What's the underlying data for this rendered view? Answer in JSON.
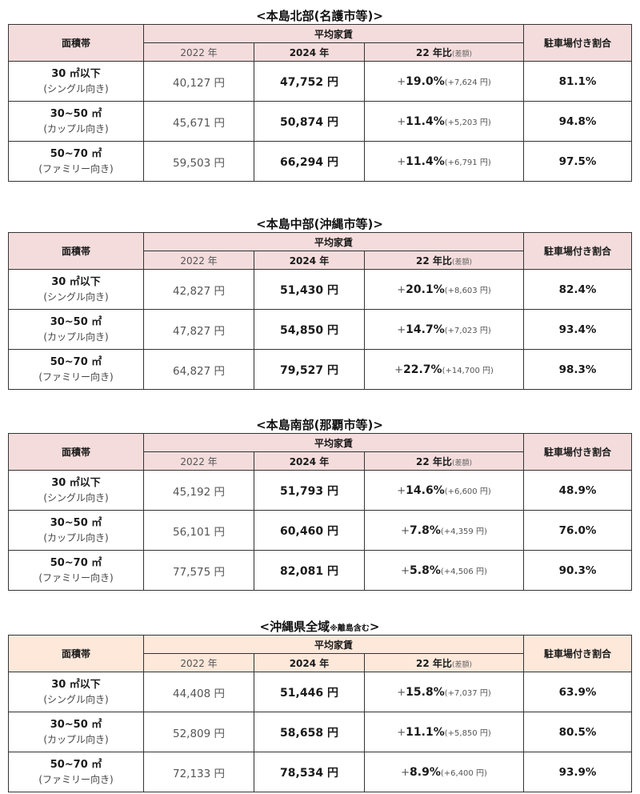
{
  "headers": {
    "area_band": "面積帯",
    "avg_rent": "平均家賃",
    "year_2022": "2022 年",
    "year_2024": "2024 年",
    "ratio_main": "22 年比",
    "ratio_note": "(差額)",
    "parking": "駐車場付き割合"
  },
  "row_labels": [
    {
      "main": "30 ㎡以下",
      "sub": "(シングル向き)"
    },
    {
      "main": "30~50 ㎡",
      "sub": "(カップル向き)"
    },
    {
      "main": "50~70 ㎡",
      "sub": "(ファミリー向き)"
    }
  ],
  "tables": [
    {
      "title": "<本島北部(名護市等)>",
      "title_note": "",
      "header_color": "#f4dcdc",
      "rows": [
        {
          "y2022": "40,127 円",
          "y2024": "47,752 円",
          "plus": "+",
          "pct": "19.0%",
          "diff": "(+7,624 円)",
          "parking": "81.1%"
        },
        {
          "y2022": "45,671 円",
          "y2024": "50,874 円",
          "plus": "+",
          "pct": "11.4%",
          "diff": "(+5,203 円)",
          "parking": "94.8%"
        },
        {
          "y2022": "59,503 円",
          "y2024": "66,294 円",
          "plus": "+",
          "pct": "11.4%",
          "diff": "(+6,791 円)",
          "parking": "97.5%"
        }
      ]
    },
    {
      "title": "<本島中部(沖縄市等)>",
      "title_note": "",
      "header_color": "#f4dcdc",
      "rows": [
        {
          "y2022": "42,827 円",
          "y2024": "51,430 円",
          "plus": "+",
          "pct": "20.1%",
          "diff": "(+8,603 円)",
          "parking": "82.4%"
        },
        {
          "y2022": "47,827 円",
          "y2024": "54,850 円",
          "plus": "+",
          "pct": "14.7%",
          "diff": "(+7,023 円)",
          "parking": "93.4%"
        },
        {
          "y2022": "64,827 円",
          "y2024": "79,527 円",
          "plus": "+",
          "pct": "22.7%",
          "diff": "(+14,700 円)",
          "parking": "98.3%"
        }
      ]
    },
    {
      "title": "<本島南部(那覇市等)>",
      "title_note": "",
      "header_color": "#f4dcdc",
      "rows": [
        {
          "y2022": "45,192 円",
          "y2024": "51,793 円",
          "plus": "+",
          "pct": "14.6%",
          "diff": "(+6,600 円)",
          "parking": "48.9%"
        },
        {
          "y2022": "56,101 円",
          "y2024": "60,460 円",
          "plus": "+",
          "pct": "7.8%",
          "diff": "(+4,359 円)",
          "parking": "76.0%"
        },
        {
          "y2022": "77,575 円",
          "y2024": "82,081 円",
          "plus": "+",
          "pct": "5.8%",
          "diff": "(+4,506 円)",
          "parking": "90.3%"
        }
      ]
    },
    {
      "title": "<沖縄県全域",
      "title_note": "※離島含む",
      "title_end": ">",
      "header_color": "#fde8da",
      "rows": [
        {
          "y2022": "44,408 円",
          "y2024": "51,446 円",
          "plus": "+",
          "pct": "15.8%",
          "diff": "(+7,037 円)",
          "parking": "63.9%"
        },
        {
          "y2022": "52,809 円",
          "y2024": "58,658 円",
          "plus": "+",
          "pct": "11.1%",
          "diff": "(+5,850 円)",
          "parking": "80.5%"
        },
        {
          "y2022": "72,133 円",
          "y2024": "78,534 円",
          "plus": "+",
          "pct": "8.9%",
          "diff": "(+6,400 円)",
          "parking": "93.9%"
        }
      ]
    }
  ]
}
